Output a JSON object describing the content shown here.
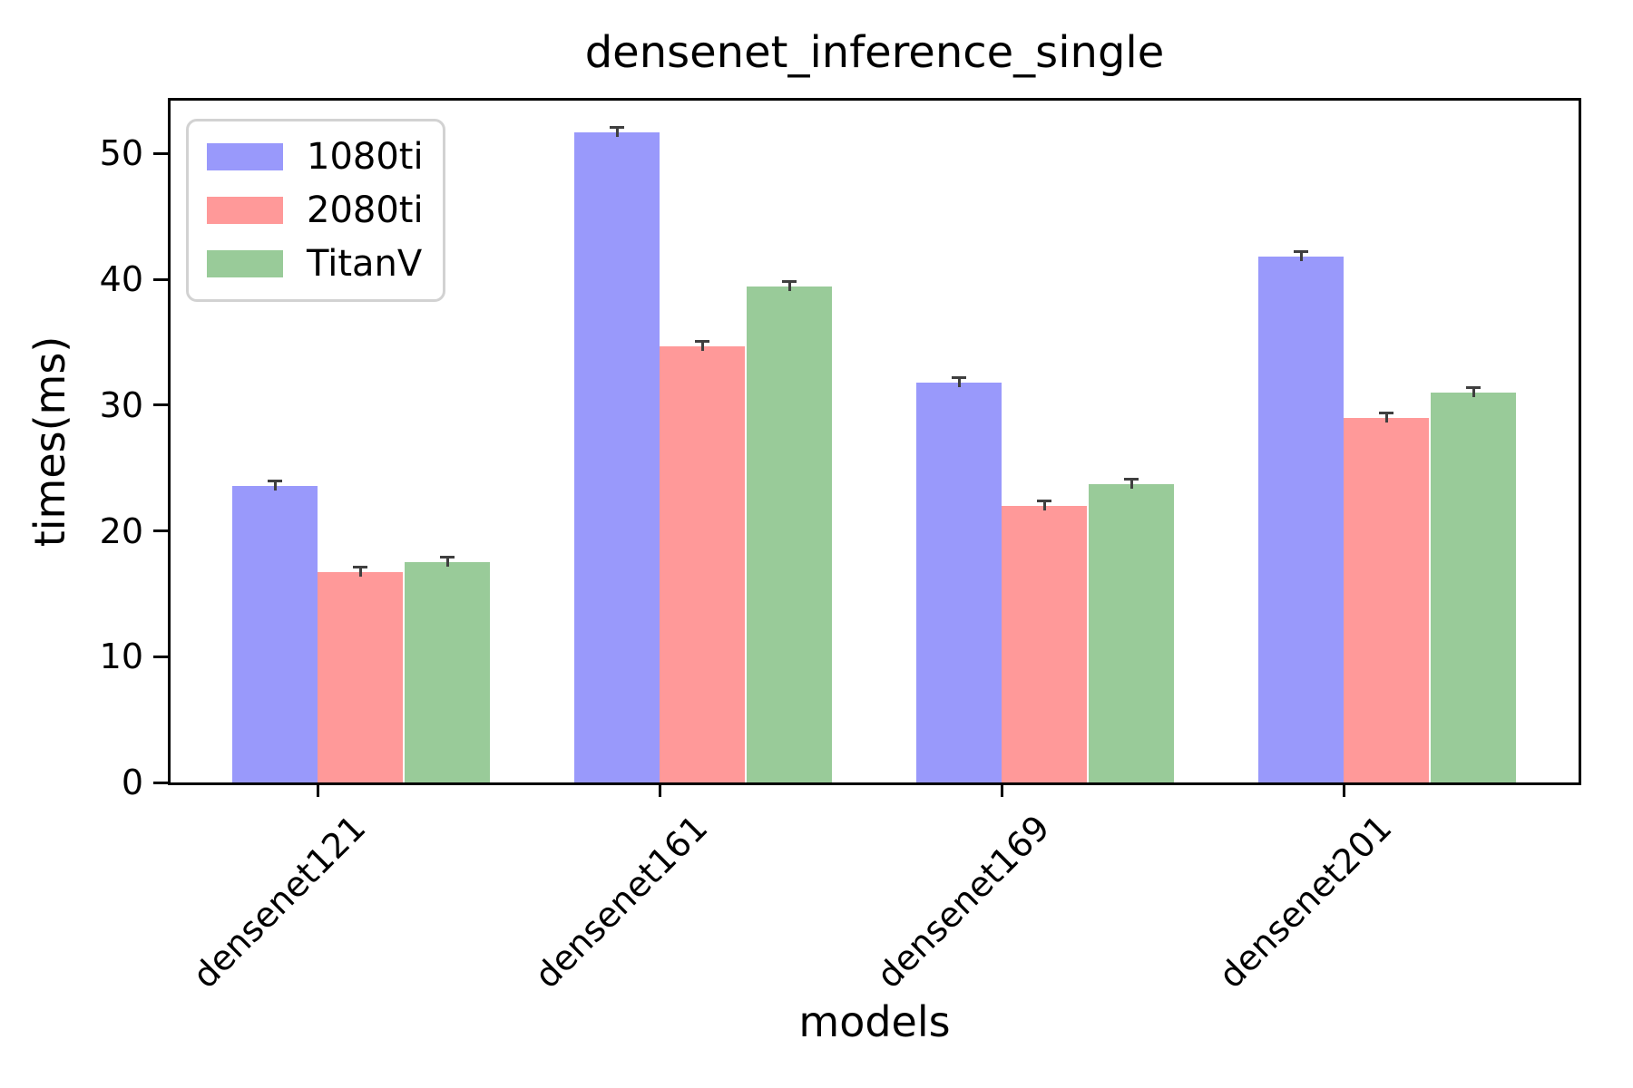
{
  "title": "densenet_inference_single",
  "chart_data": {
    "type": "bar",
    "title": "densenet_inference_single",
    "xlabel": "models",
    "ylabel": "times(ms)",
    "categories": [
      "densenet121",
      "densenet161",
      "densenet169",
      "densenet201"
    ],
    "series": [
      {
        "name": "1080ti",
        "color": "#9999fb",
        "values": [
          23.6,
          51.7,
          31.8,
          41.8
        ]
      },
      {
        "name": "2080ti",
        "color": "#ff9999",
        "values": [
          16.7,
          34.7,
          22.0,
          29.0
        ]
      },
      {
        "name": "TitanV",
        "color": "#99cb99",
        "values": [
          17.5,
          39.4,
          23.7,
          31.0
        ]
      }
    ],
    "ylim": [
      0,
      54.2
    ],
    "yticks": [
      0,
      10,
      20,
      30,
      40,
      50
    ],
    "legend_position": "upper left",
    "grid": false,
    "error_bars": true,
    "colors": {
      "spine": "#000000",
      "error_cap": "#3f3f3f",
      "legend_border": "#d2d2d2",
      "background": "#ffffff"
    }
  }
}
